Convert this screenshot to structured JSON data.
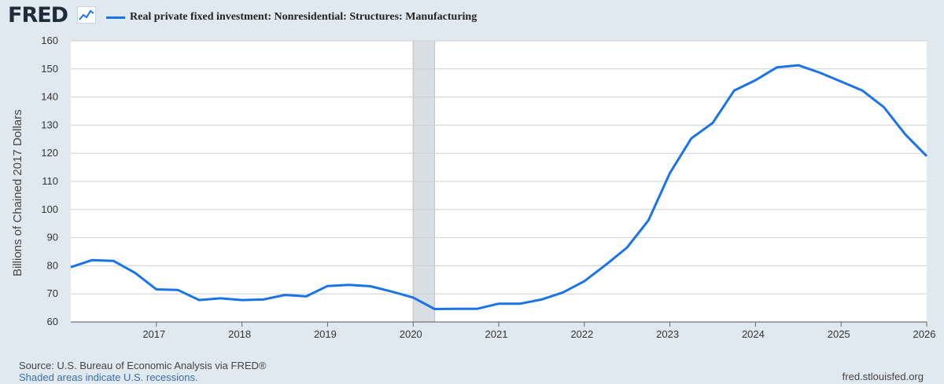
{
  "header": {
    "logo_text": "FRED",
    "logo_icon": "chart-line-icon",
    "legend_label": "Real private fixed investment: Nonresidential: Structures: Manufacturing"
  },
  "footer": {
    "source": "Source: U.S. Bureau of Economic Analysis via FRED®",
    "note": "Shaded areas indicate U.S. recessions.",
    "url": "fred.stlouisfed.org"
  },
  "colors": {
    "line": "#1a73e8",
    "recession": "#d9dee4",
    "grid": "#cfcfcf"
  },
  "chart_data": {
    "type": "line",
    "title": "",
    "xlabel": "",
    "ylabel": "Billions of Chained 2017 Dollars",
    "xlim": [
      2016.0,
      2026.0
    ],
    "ylim": [
      60,
      160
    ],
    "y_ticks": [
      60,
      70,
      80,
      90,
      100,
      110,
      120,
      130,
      140,
      150,
      160
    ],
    "x_ticks": [
      2017,
      2018,
      2019,
      2020,
      2021,
      2022,
      2023,
      2024,
      2025,
      2026
    ],
    "grid": true,
    "recessions": [
      [
        2020.0,
        2020.25
      ]
    ],
    "series": [
      {
        "name": "Real private fixed investment: Nonresidential: Structures: Manufacturing",
        "x": [
          2016.0,
          2016.25,
          2016.5,
          2016.75,
          2017.0,
          2017.25,
          2017.5,
          2017.75,
          2018.0,
          2018.25,
          2018.5,
          2018.75,
          2019.0,
          2019.25,
          2019.5,
          2019.75,
          2020.0,
          2020.25,
          2020.5,
          2020.75,
          2021.0,
          2021.25,
          2021.5,
          2021.75,
          2022.0,
          2022.25,
          2022.5,
          2022.75,
          2023.0,
          2023.25,
          2023.5,
          2023.75,
          2024.0,
          2024.25,
          2024.5,
          2024.75,
          2025.0,
          2025.25,
          2025.5,
          2025.75,
          2026.0
        ],
        "values": [
          79.5,
          82.0,
          81.7,
          77.5,
          71.6,
          71.4,
          67.8,
          68.4,
          67.8,
          68.0,
          69.6,
          69.1,
          72.8,
          73.2,
          72.7,
          70.8,
          68.7,
          64.6,
          64.7,
          64.7,
          66.5,
          66.5,
          68.0,
          70.5,
          74.5,
          80.3,
          86.5,
          96.2,
          113.0,
          125.3,
          130.8,
          142.3,
          146.0,
          150.6,
          151.3,
          148.7,
          145.5,
          142.3,
          136.4,
          126.7,
          119.0
        ]
      }
    ]
  }
}
